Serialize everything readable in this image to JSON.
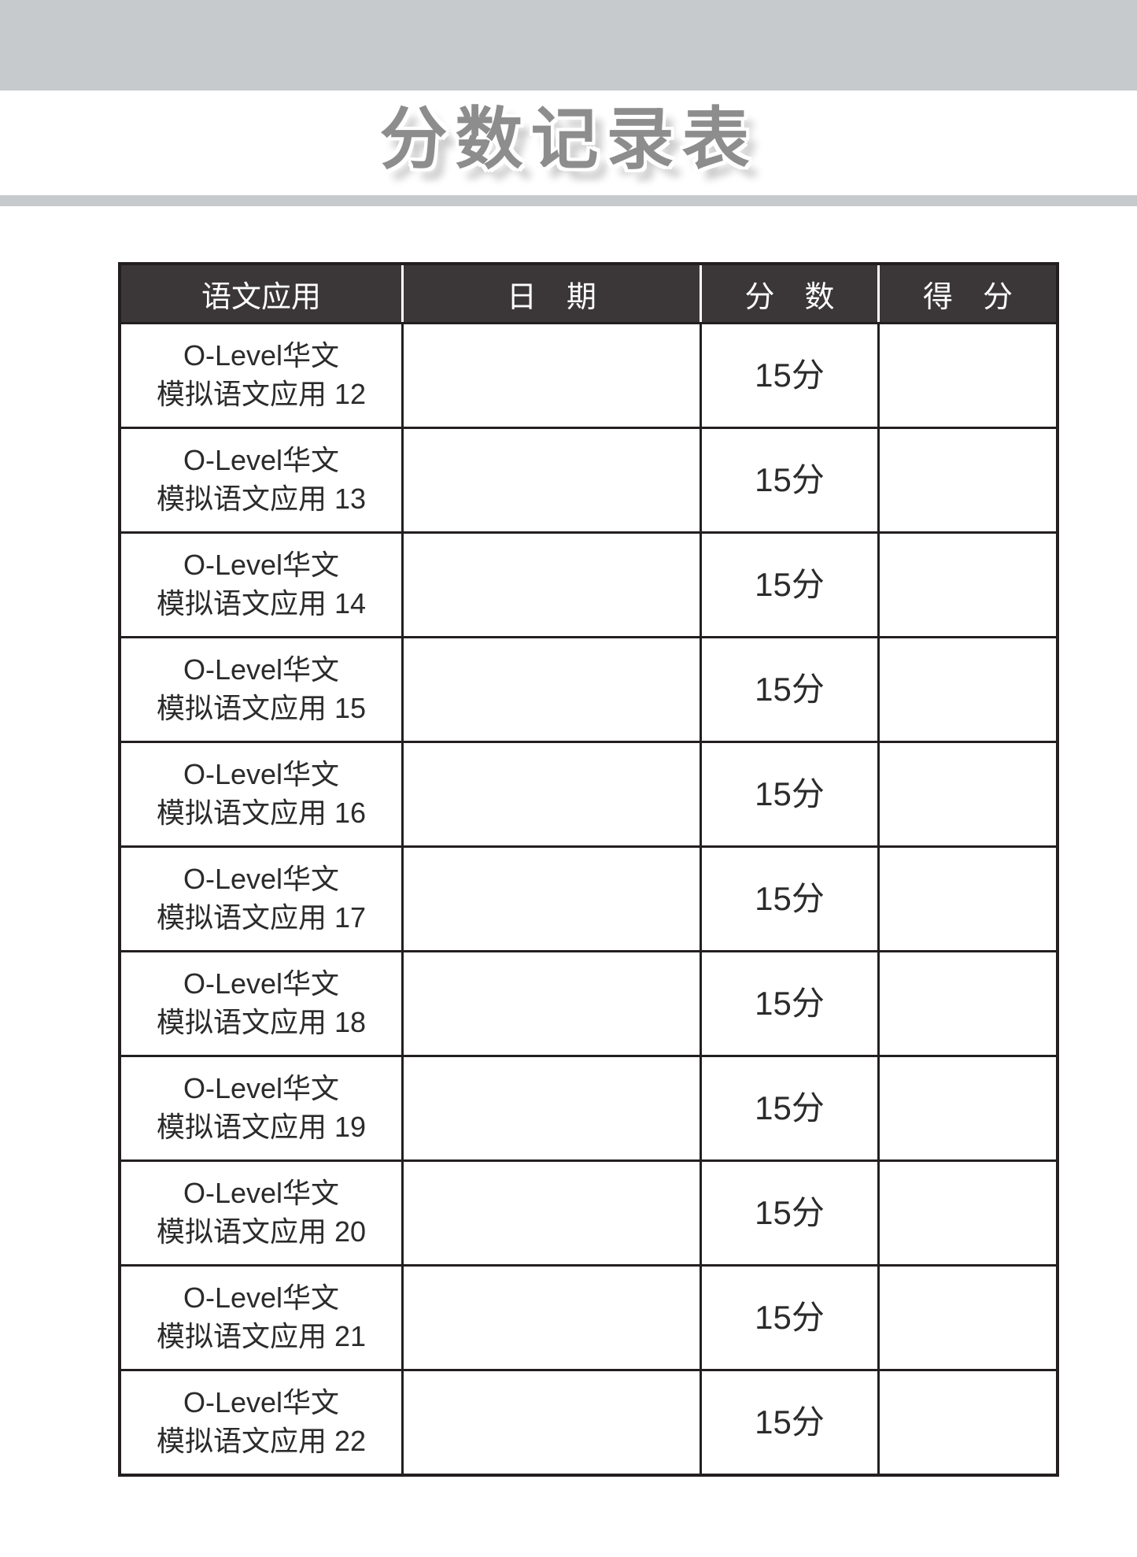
{
  "page": {
    "title": "分数记录表"
  },
  "colors": {
    "band": "#c7cacc",
    "header_bg": "#3b3738",
    "header_text": "#ffffff",
    "border": "#231f20",
    "cell_text": "#2b2b2b",
    "title_text": "#8d8d8d",
    "title_outline": "#ffffff",
    "title_shadow": "#c6c6c6"
  },
  "table": {
    "headers": [
      "语文应用",
      "日　期",
      "分　数",
      "得　分"
    ],
    "rows": [
      {
        "subject_line1": "O-Level华文",
        "subject_line2": "模拟语文应用 12",
        "date": "",
        "score": "15分",
        "obtained": ""
      },
      {
        "subject_line1": "O-Level华文",
        "subject_line2": "模拟语文应用 13",
        "date": "",
        "score": "15分",
        "obtained": ""
      },
      {
        "subject_line1": "O-Level华文",
        "subject_line2": "模拟语文应用 14",
        "date": "",
        "score": "15分",
        "obtained": ""
      },
      {
        "subject_line1": "O-Level华文",
        "subject_line2": "模拟语文应用 15",
        "date": "",
        "score": "15分",
        "obtained": ""
      },
      {
        "subject_line1": "O-Level华文",
        "subject_line2": "模拟语文应用 16",
        "date": "",
        "score": "15分",
        "obtained": ""
      },
      {
        "subject_line1": "O-Level华文",
        "subject_line2": "模拟语文应用 17",
        "date": "",
        "score": "15分",
        "obtained": ""
      },
      {
        "subject_line1": "O-Level华文",
        "subject_line2": "模拟语文应用 18",
        "date": "",
        "score": "15分",
        "obtained": ""
      },
      {
        "subject_line1": "O-Level华文",
        "subject_line2": "模拟语文应用 19",
        "date": "",
        "score": "15分",
        "obtained": ""
      },
      {
        "subject_line1": "O-Level华文",
        "subject_line2": "模拟语文应用 20",
        "date": "",
        "score": "15分",
        "obtained": ""
      },
      {
        "subject_line1": "O-Level华文",
        "subject_line2": "模拟语文应用 21",
        "date": "",
        "score": "15分",
        "obtained": ""
      },
      {
        "subject_line1": "O-Level华文",
        "subject_line2": "模拟语文应用 22",
        "date": "",
        "score": "15分",
        "obtained": ""
      }
    ]
  }
}
